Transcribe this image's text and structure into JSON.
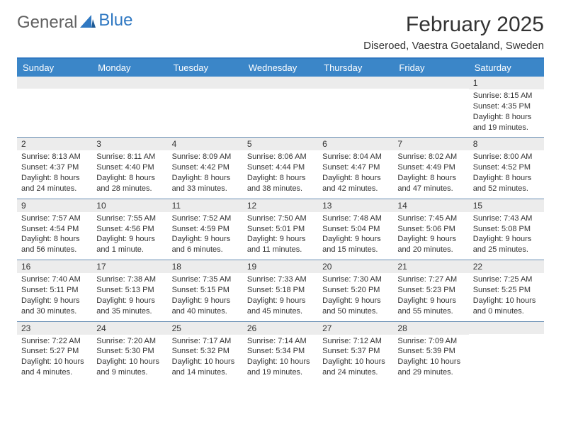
{
  "brand": {
    "part1": "General",
    "part2": "Blue"
  },
  "title": "February 2025",
  "location": "Diseroed, Vaestra Goetaland, Sweden",
  "colors": {
    "header_bg": "#3b86c8",
    "header_text": "#ffffff",
    "rule": "#2f78c2",
    "daynum_bg": "#ececec",
    "text": "#333333",
    "row_border": "#6a8fb5",
    "logo_gray": "#606060",
    "logo_blue": "#2f78c2",
    "background": "#ffffff"
  },
  "typography": {
    "title_pt": 30,
    "location_pt": 15,
    "weekday_pt": 13,
    "daynum_pt": 12,
    "body_pt": 11,
    "logo_pt": 24
  },
  "week_days": [
    "Sunday",
    "Monday",
    "Tuesday",
    "Wednesday",
    "Thursday",
    "Friday",
    "Saturday"
  ],
  "weeks": [
    [
      {
        "n": "",
        "sunrise": "",
        "sunset": "",
        "daylight": ""
      },
      {
        "n": "",
        "sunrise": "",
        "sunset": "",
        "daylight": ""
      },
      {
        "n": "",
        "sunrise": "",
        "sunset": "",
        "daylight": ""
      },
      {
        "n": "",
        "sunrise": "",
        "sunset": "",
        "daylight": ""
      },
      {
        "n": "",
        "sunrise": "",
        "sunset": "",
        "daylight": ""
      },
      {
        "n": "",
        "sunrise": "",
        "sunset": "",
        "daylight": ""
      },
      {
        "n": "1",
        "sunrise": "Sunrise: 8:15 AM",
        "sunset": "Sunset: 4:35 PM",
        "daylight": "Daylight: 8 hours and 19 minutes."
      }
    ],
    [
      {
        "n": "2",
        "sunrise": "Sunrise: 8:13 AM",
        "sunset": "Sunset: 4:37 PM",
        "daylight": "Daylight: 8 hours and 24 minutes."
      },
      {
        "n": "3",
        "sunrise": "Sunrise: 8:11 AM",
        "sunset": "Sunset: 4:40 PM",
        "daylight": "Daylight: 8 hours and 28 minutes."
      },
      {
        "n": "4",
        "sunrise": "Sunrise: 8:09 AM",
        "sunset": "Sunset: 4:42 PM",
        "daylight": "Daylight: 8 hours and 33 minutes."
      },
      {
        "n": "5",
        "sunrise": "Sunrise: 8:06 AM",
        "sunset": "Sunset: 4:44 PM",
        "daylight": "Daylight: 8 hours and 38 minutes."
      },
      {
        "n": "6",
        "sunrise": "Sunrise: 8:04 AM",
        "sunset": "Sunset: 4:47 PM",
        "daylight": "Daylight: 8 hours and 42 minutes."
      },
      {
        "n": "7",
        "sunrise": "Sunrise: 8:02 AM",
        "sunset": "Sunset: 4:49 PM",
        "daylight": "Daylight: 8 hours and 47 minutes."
      },
      {
        "n": "8",
        "sunrise": "Sunrise: 8:00 AM",
        "sunset": "Sunset: 4:52 PM",
        "daylight": "Daylight: 8 hours and 52 minutes."
      }
    ],
    [
      {
        "n": "9",
        "sunrise": "Sunrise: 7:57 AM",
        "sunset": "Sunset: 4:54 PM",
        "daylight": "Daylight: 8 hours and 56 minutes."
      },
      {
        "n": "10",
        "sunrise": "Sunrise: 7:55 AM",
        "sunset": "Sunset: 4:56 PM",
        "daylight": "Daylight: 9 hours and 1 minute."
      },
      {
        "n": "11",
        "sunrise": "Sunrise: 7:52 AM",
        "sunset": "Sunset: 4:59 PM",
        "daylight": "Daylight: 9 hours and 6 minutes."
      },
      {
        "n": "12",
        "sunrise": "Sunrise: 7:50 AM",
        "sunset": "Sunset: 5:01 PM",
        "daylight": "Daylight: 9 hours and 11 minutes."
      },
      {
        "n": "13",
        "sunrise": "Sunrise: 7:48 AM",
        "sunset": "Sunset: 5:04 PM",
        "daylight": "Daylight: 9 hours and 15 minutes."
      },
      {
        "n": "14",
        "sunrise": "Sunrise: 7:45 AM",
        "sunset": "Sunset: 5:06 PM",
        "daylight": "Daylight: 9 hours and 20 minutes."
      },
      {
        "n": "15",
        "sunrise": "Sunrise: 7:43 AM",
        "sunset": "Sunset: 5:08 PM",
        "daylight": "Daylight: 9 hours and 25 minutes."
      }
    ],
    [
      {
        "n": "16",
        "sunrise": "Sunrise: 7:40 AM",
        "sunset": "Sunset: 5:11 PM",
        "daylight": "Daylight: 9 hours and 30 minutes."
      },
      {
        "n": "17",
        "sunrise": "Sunrise: 7:38 AM",
        "sunset": "Sunset: 5:13 PM",
        "daylight": "Daylight: 9 hours and 35 minutes."
      },
      {
        "n": "18",
        "sunrise": "Sunrise: 7:35 AM",
        "sunset": "Sunset: 5:15 PM",
        "daylight": "Daylight: 9 hours and 40 minutes."
      },
      {
        "n": "19",
        "sunrise": "Sunrise: 7:33 AM",
        "sunset": "Sunset: 5:18 PM",
        "daylight": "Daylight: 9 hours and 45 minutes."
      },
      {
        "n": "20",
        "sunrise": "Sunrise: 7:30 AM",
        "sunset": "Sunset: 5:20 PM",
        "daylight": "Daylight: 9 hours and 50 minutes."
      },
      {
        "n": "21",
        "sunrise": "Sunrise: 7:27 AM",
        "sunset": "Sunset: 5:23 PM",
        "daylight": "Daylight: 9 hours and 55 minutes."
      },
      {
        "n": "22",
        "sunrise": "Sunrise: 7:25 AM",
        "sunset": "Sunset: 5:25 PM",
        "daylight": "Daylight: 10 hours and 0 minutes."
      }
    ],
    [
      {
        "n": "23",
        "sunrise": "Sunrise: 7:22 AM",
        "sunset": "Sunset: 5:27 PM",
        "daylight": "Daylight: 10 hours and 4 minutes."
      },
      {
        "n": "24",
        "sunrise": "Sunrise: 7:20 AM",
        "sunset": "Sunset: 5:30 PM",
        "daylight": "Daylight: 10 hours and 9 minutes."
      },
      {
        "n": "25",
        "sunrise": "Sunrise: 7:17 AM",
        "sunset": "Sunset: 5:32 PM",
        "daylight": "Daylight: 10 hours and 14 minutes."
      },
      {
        "n": "26",
        "sunrise": "Sunrise: 7:14 AM",
        "sunset": "Sunset: 5:34 PM",
        "daylight": "Daylight: 10 hours and 19 minutes."
      },
      {
        "n": "27",
        "sunrise": "Sunrise: 7:12 AM",
        "sunset": "Sunset: 5:37 PM",
        "daylight": "Daylight: 10 hours and 24 minutes."
      },
      {
        "n": "28",
        "sunrise": "Sunrise: 7:09 AM",
        "sunset": "Sunset: 5:39 PM",
        "daylight": "Daylight: 10 hours and 29 minutes."
      },
      {
        "n": "",
        "sunrise": "",
        "sunset": "",
        "daylight": ""
      }
    ]
  ]
}
